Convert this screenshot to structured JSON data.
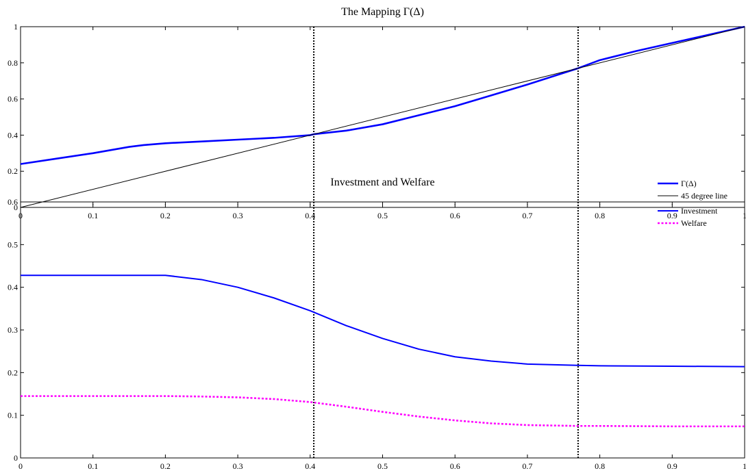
{
  "chart_data": [
    {
      "type": "line",
      "title": "The Mapping Γ(Δ)",
      "xlabel": "",
      "ylabel": "",
      "xlim": [
        0,
        1
      ],
      "ylim": [
        0,
        1
      ],
      "xticks": [
        0,
        0.1,
        0.2,
        0.3,
        0.4,
        0.5,
        0.6,
        0.7,
        0.8,
        0.9,
        1
      ],
      "yticks": [
        0,
        0.2,
        0.4,
        0.6,
        0.8,
        1
      ],
      "xtick_labels": [
        "0",
        "0.1",
        "0.2",
        "0.3",
        "0.4",
        "0.5",
        "0.6",
        "0.7",
        "0.8",
        "0.9",
        "1"
      ],
      "ytick_labels": [
        "0",
        "0.2",
        "0.4",
        "0.6",
        "0.8",
        "1"
      ],
      "grid": false,
      "legend_position": "bottom-right",
      "vlines": [
        0.405,
        0.77
      ],
      "series": [
        {
          "name": "Γ(Δ)",
          "color": "#0000ff",
          "style": "solid-thick",
          "x": [
            0,
            0.05,
            0.1,
            0.15,
            0.17,
            0.2,
            0.25,
            0.3,
            0.35,
            0.4,
            0.405,
            0.45,
            0.5,
            0.55,
            0.6,
            0.65,
            0.7,
            0.77,
            0.8,
            0.85,
            0.9,
            0.95,
            1
          ],
          "y": [
            0.24,
            0.27,
            0.3,
            0.335,
            0.345,
            0.355,
            0.365,
            0.375,
            0.385,
            0.4,
            0.405,
            0.425,
            0.46,
            0.51,
            0.56,
            0.62,
            0.68,
            0.77,
            0.815,
            0.865,
            0.91,
            0.955,
            1.0
          ]
        },
        {
          "name": "45 degree line",
          "color": "#000000",
          "style": "solid-thin",
          "x": [
            0,
            1
          ],
          "y": [
            0,
            1
          ]
        }
      ]
    },
    {
      "type": "line",
      "title": "Investment and Welfare",
      "xlabel": "",
      "ylabel": "",
      "xlim": [
        0,
        1
      ],
      "ylim": [
        0,
        0.6
      ],
      "xticks": [
        0,
        0.1,
        0.2,
        0.3,
        0.4,
        0.5,
        0.6,
        0.7,
        0.8,
        0.9,
        1
      ],
      "yticks": [
        0,
        0.1,
        0.2,
        0.3,
        0.4,
        0.5,
        0.6
      ],
      "xtick_labels": [
        "0",
        "0.1",
        "0.2",
        "0.3",
        "0.4",
        "0.5",
        "0.6",
        "0.7",
        "0.8",
        "0.9",
        "1"
      ],
      "ytick_labels": [
        "0",
        "0.1",
        "0.2",
        "0.3",
        "0.4",
        "0.5",
        "0.6"
      ],
      "grid": false,
      "legend_position": "top-right",
      "vlines": [
        0.405,
        0.77
      ],
      "series": [
        {
          "name": "Investment",
          "color": "#0000ff",
          "style": "solid",
          "x": [
            0,
            0.05,
            0.1,
            0.15,
            0.2,
            0.25,
            0.3,
            0.35,
            0.4,
            0.45,
            0.5,
            0.55,
            0.6,
            0.65,
            0.7,
            0.77,
            0.8,
            0.9,
            1
          ],
          "y": [
            0.428,
            0.428,
            0.428,
            0.428,
            0.428,
            0.418,
            0.4,
            0.375,
            0.345,
            0.31,
            0.28,
            0.255,
            0.237,
            0.227,
            0.22,
            0.217,
            0.216,
            0.215,
            0.214
          ]
        },
        {
          "name": "Welfare",
          "color": "#ff00ff",
          "style": "dotted",
          "x": [
            0,
            0.05,
            0.1,
            0.15,
            0.2,
            0.25,
            0.3,
            0.35,
            0.4,
            0.45,
            0.5,
            0.55,
            0.6,
            0.65,
            0.7,
            0.77,
            0.8,
            0.9,
            1
          ],
          "y": [
            0.145,
            0.145,
            0.145,
            0.145,
            0.145,
            0.144,
            0.142,
            0.138,
            0.131,
            0.12,
            0.108,
            0.097,
            0.088,
            0.081,
            0.077,
            0.075,
            0.075,
            0.074,
            0.074
          ]
        }
      ]
    }
  ]
}
